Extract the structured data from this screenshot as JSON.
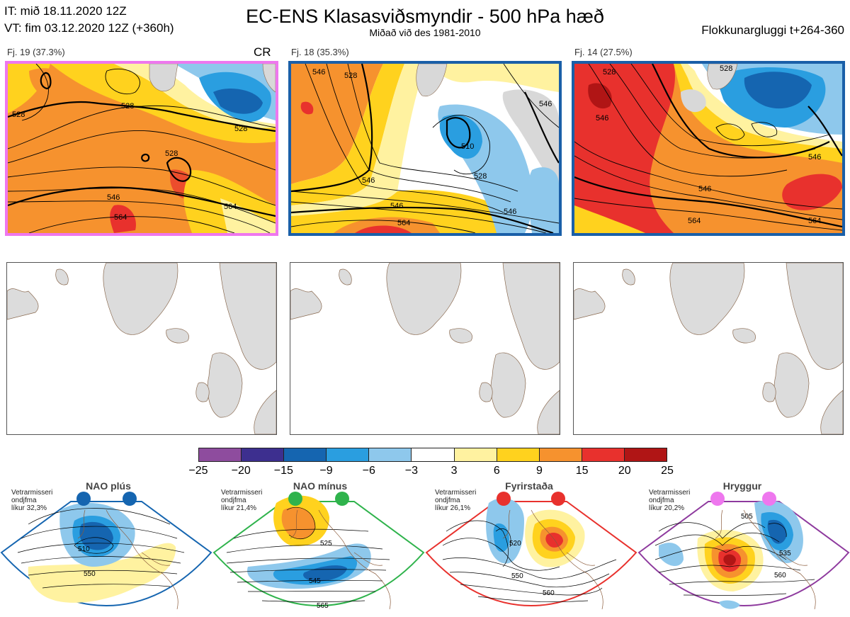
{
  "header": {
    "it_line": "IT: mið 18.11.2020 12Z",
    "vt_line": "VT: fim 03.12.2020 12Z  (+360h)",
    "title": "EC-ENS Klasasviðsmyndir - 500 hPa hæð",
    "subtitle": "Miðað við des 1981-2010",
    "window_label": "Flokkunargluggi t+264-360"
  },
  "clusters": [
    {
      "label": "Fj. 19 (37.3%)",
      "tag": "CR",
      "frame_color": "#ee77ee",
      "contour_labels": [
        "528",
        "528",
        "528",
        "546",
        "564",
        "564",
        "528"
      ]
    },
    {
      "label": "Fj. 18 (35.3%)",
      "tag": "",
      "frame_color": "#1a5fa8",
      "contour_labels": [
        "546",
        "528",
        "510",
        "528",
        "546",
        "546",
        "564",
        "546",
        "546"
      ]
    },
    {
      "label": "Fj. 14 (27.5%)",
      "tag": "",
      "frame_color": "#1a5fa8",
      "contour_labels": [
        "546",
        "528",
        "528",
        "546",
        "564",
        "546",
        "564"
      ]
    }
  ],
  "colorbar": {
    "ticks": [
      "−25",
      "−20",
      "−15",
      "−9",
      "−6",
      "−3",
      "3",
      "6",
      "9",
      "15",
      "20",
      "25"
    ],
    "colors": [
      "#8e4c9e",
      "#3d2f8f",
      "#1565b0",
      "#2a9ee0",
      "#8ec8ec",
      "#ffffff",
      "#fff2a0",
      "#ffd21e",
      "#f6922e",
      "#e8312d",
      "#b01515"
    ]
  },
  "regimes": [
    {
      "title": "NAO plús",
      "note": [
        "Vetrarmisseri",
        "ondjfma",
        "líkur 32,3%"
      ],
      "dot_color": "#1565b0",
      "frame_color": "#1565b0",
      "contour_labels": [
        "510",
        "550"
      ]
    },
    {
      "title": "NAO mínus",
      "note": [
        "Vetrarmisseri",
        "ondjfma",
        "líkur 21,4%"
      ],
      "dot_color": "#2fb34c",
      "frame_color": "#2fb34c",
      "contour_labels": [
        "525",
        "545",
        "565"
      ]
    },
    {
      "title": "Fyrirstaða",
      "note": [
        "Vetrarmisseri",
        "ondjfma",
        "líkur 26,1%"
      ],
      "dot_color": "#e8312d",
      "frame_color": "#e8312d",
      "contour_labels": [
        "520",
        "550",
        "560"
      ]
    },
    {
      "title": "Hryggur",
      "note": [
        "Vetrarmisseri",
        "ondjfma",
        "líkur 20,2%"
      ],
      "dot_color": "#ee77ee",
      "frame_color": "#8e3a9e",
      "contour_labels": [
        "505",
        "535",
        "560"
      ]
    }
  ]
}
